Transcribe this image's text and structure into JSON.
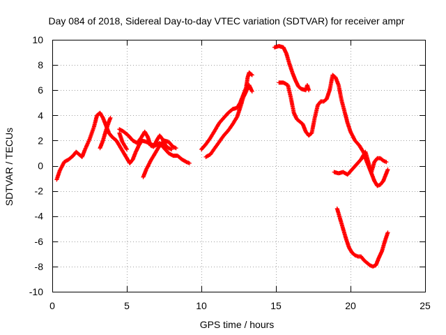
{
  "chart_data": {
    "type": "scatter",
    "title": "Day 084 of 2018, Sidereal Day-to-day VTEC variation (SDTVAR) for receiver ampr",
    "xlabel": "GPS time / hours",
    "ylabel": "SDTVAR / TECUs",
    "xlim": [
      0,
      25
    ],
    "ylim": [
      -10,
      10
    ],
    "x_ticks": [
      0,
      5,
      10,
      15,
      20,
      25
    ],
    "x_tick_labels": [
      "0",
      "5",
      "10",
      "15",
      "20",
      "25"
    ],
    "y_ticks": [
      -10,
      -8,
      -6,
      -4,
      -2,
      0,
      2,
      4,
      6,
      8,
      10
    ],
    "y_tick_labels": [
      "-10",
      "-8",
      "-6",
      "-4",
      "-2",
      "0",
      "2",
      "4",
      "6",
      "8",
      "10"
    ],
    "grid": true,
    "marker": "plus",
    "color": "#ff0000",
    "series": [
      {
        "points": [
          [
            0.3,
            -1.1
          ],
          [
            0.5,
            -0.4
          ],
          [
            0.8,
            0.3
          ],
          [
            1.1,
            0.5
          ],
          [
            1.4,
            0.8
          ],
          [
            1.6,
            1.1
          ],
          [
            1.8,
            0.9
          ],
          [
            2.0,
            0.7
          ],
          [
            2.2,
            1.3
          ],
          [
            2.5,
            2.1
          ],
          [
            2.8,
            3.1
          ],
          [
            3.0,
            4.0
          ],
          [
            3.2,
            4.2
          ],
          [
            3.4,
            3.8
          ],
          [
            3.6,
            3.2
          ],
          [
            3.8,
            2.6
          ],
          [
            4.0,
            2.3
          ],
          [
            4.3,
            2.0
          ],
          [
            4.5,
            1.6
          ],
          [
            4.8,
            1.0
          ],
          [
            5.0,
            0.6
          ],
          [
            5.2,
            0.2
          ],
          [
            5.4,
            0.5
          ],
          [
            5.6,
            1.1
          ],
          [
            5.8,
            1.6
          ],
          [
            6.0,
            2.0
          ],
          [
            6.3,
            1.9
          ],
          [
            6.6,
            1.7
          ],
          [
            6.9,
            1.6
          ],
          [
            7.2,
            1.8
          ],
          [
            7.5,
            1.4
          ],
          [
            7.8,
            1.0
          ],
          [
            8.1,
            0.8
          ],
          [
            8.4,
            0.8
          ],
          [
            8.7,
            0.5
          ],
          [
            9.0,
            0.3
          ],
          [
            9.2,
            0.2
          ]
        ]
      },
      {
        "points": [
          [
            3.2,
            1.4
          ],
          [
            3.4,
            2.0
          ],
          [
            3.6,
            2.8
          ],
          [
            3.8,
            3.5
          ],
          [
            3.9,
            3.8
          ]
        ]
      },
      {
        "points": [
          [
            4.5,
            2.6
          ],
          [
            4.7,
            1.9
          ],
          [
            5.0,
            1.3
          ]
        ]
      },
      {
        "points": [
          [
            4.5,
            2.9
          ],
          [
            4.8,
            2.7
          ],
          [
            5.1,
            2.4
          ],
          [
            5.4,
            2.0
          ],
          [
            5.7,
            1.8
          ],
          [
            6.0,
            2.3
          ],
          [
            6.2,
            2.7
          ],
          [
            6.4,
            2.3
          ],
          [
            6.6,
            1.6
          ],
          [
            6.8,
            1.5
          ],
          [
            7.0,
            2.0
          ],
          [
            7.2,
            2.4
          ],
          [
            7.4,
            2.1
          ],
          [
            7.6,
            1.6
          ],
          [
            7.8,
            1.4
          ],
          [
            8.0,
            1.3
          ]
        ]
      },
      {
        "points": [
          [
            6.1,
            -0.9
          ],
          [
            6.3,
            -0.3
          ],
          [
            6.6,
            0.4
          ],
          [
            6.9,
            1.0
          ],
          [
            7.2,
            1.6
          ],
          [
            7.5,
            2.0
          ],
          [
            7.8,
            1.9
          ],
          [
            8.1,
            1.5
          ],
          [
            8.3,
            1.4
          ]
        ]
      },
      {
        "points": [
          [
            10.0,
            1.3
          ],
          [
            10.3,
            1.7
          ],
          [
            10.6,
            2.2
          ],
          [
            10.9,
            2.8
          ],
          [
            11.2,
            3.4
          ],
          [
            11.5,
            3.8
          ],
          [
            11.8,
            4.2
          ],
          [
            12.1,
            4.5
          ],
          [
            12.4,
            4.6
          ],
          [
            12.6,
            5.0
          ],
          [
            12.8,
            5.6
          ],
          [
            13.0,
            6.2
          ],
          [
            13.1,
            7.0
          ],
          [
            13.2,
            7.4
          ],
          [
            13.4,
            7.2
          ]
        ]
      },
      {
        "points": [
          [
            10.3,
            0.7
          ],
          [
            10.6,
            0.9
          ],
          [
            10.9,
            1.4
          ],
          [
            11.2,
            1.9
          ],
          [
            11.5,
            2.4
          ],
          [
            11.8,
            2.8
          ],
          [
            12.1,
            3.3
          ],
          [
            12.4,
            3.9
          ],
          [
            12.6,
            4.6
          ],
          [
            12.8,
            5.4
          ],
          [
            13.0,
            5.9
          ],
          [
            13.2,
            6.4
          ],
          [
            13.4,
            5.9
          ]
        ]
      },
      {
        "points": [
          [
            14.9,
            9.4
          ],
          [
            15.2,
            9.5
          ],
          [
            15.5,
            9.4
          ],
          [
            15.7,
            8.9
          ],
          [
            15.9,
            8.1
          ],
          [
            16.1,
            7.4
          ],
          [
            16.3,
            6.8
          ],
          [
            16.5,
            6.3
          ],
          [
            16.7,
            6.1
          ],
          [
            17.0,
            6.0
          ],
          [
            17.1,
            6.4
          ],
          [
            17.2,
            6.0
          ]
        ]
      },
      {
        "points": [
          [
            15.2,
            6.6
          ],
          [
            15.5,
            6.6
          ],
          [
            15.8,
            6.4
          ],
          [
            16.0,
            5.4
          ],
          [
            16.2,
            4.2
          ],
          [
            16.4,
            3.7
          ],
          [
            16.6,
            3.5
          ],
          [
            16.8,
            3.3
          ],
          [
            17.0,
            2.7
          ],
          [
            17.2,
            2.4
          ],
          [
            17.4,
            2.6
          ],
          [
            17.6,
            3.8
          ],
          [
            17.8,
            4.8
          ],
          [
            18.0,
            5.1
          ],
          [
            18.2,
            5.1
          ],
          [
            18.4,
            5.3
          ],
          [
            18.6,
            6.0
          ],
          [
            18.8,
            7.2
          ],
          [
            19.0,
            7.0
          ],
          [
            19.2,
            6.4
          ],
          [
            19.4,
            5.2
          ],
          [
            19.6,
            4.3
          ],
          [
            19.8,
            3.4
          ],
          [
            20.0,
            2.7
          ],
          [
            20.3,
            2.0
          ],
          [
            20.6,
            1.6
          ],
          [
            20.9,
            1.0
          ],
          [
            21.0,
            0.6
          ],
          [
            21.2,
            0.0
          ],
          [
            21.4,
            -0.6
          ],
          [
            21.6,
            -1.2
          ],
          [
            21.8,
            -1.6
          ],
          [
            22.0,
            -1.5
          ],
          [
            22.2,
            -1.2
          ],
          [
            22.4,
            -0.6
          ],
          [
            22.5,
            -0.3
          ]
        ]
      },
      {
        "points": [
          [
            18.9,
            -0.5
          ],
          [
            19.2,
            -0.6
          ],
          [
            19.5,
            -0.5
          ],
          [
            19.8,
            -0.7
          ],
          [
            20.1,
            -0.3
          ],
          [
            20.4,
            0.1
          ],
          [
            20.7,
            0.5
          ],
          [
            20.9,
            0.9
          ],
          [
            21.0,
            1.1
          ],
          [
            21.1,
            0.7
          ],
          [
            21.3,
            -0.2
          ],
          [
            21.4,
            -0.5
          ],
          [
            21.6,
            0.3
          ],
          [
            21.8,
            0.6
          ],
          [
            22.0,
            0.6
          ],
          [
            22.2,
            0.4
          ],
          [
            22.4,
            0.3
          ]
        ]
      },
      {
        "points": [
          [
            19.1,
            -3.4
          ],
          [
            19.3,
            -4.2
          ],
          [
            19.5,
            -5.0
          ],
          [
            19.7,
            -5.8
          ],
          [
            19.9,
            -6.5
          ],
          [
            20.1,
            -6.9
          ],
          [
            20.3,
            -7.1
          ],
          [
            20.5,
            -7.2
          ],
          [
            20.7,
            -7.2
          ],
          [
            20.9,
            -7.5
          ],
          [
            21.1,
            -7.7
          ],
          [
            21.3,
            -7.9
          ],
          [
            21.5,
            -8.0
          ],
          [
            21.7,
            -7.9
          ],
          [
            21.9,
            -7.3
          ],
          [
            22.1,
            -6.8
          ],
          [
            22.3,
            -6.0
          ],
          [
            22.5,
            -5.3
          ]
        ]
      }
    ]
  }
}
